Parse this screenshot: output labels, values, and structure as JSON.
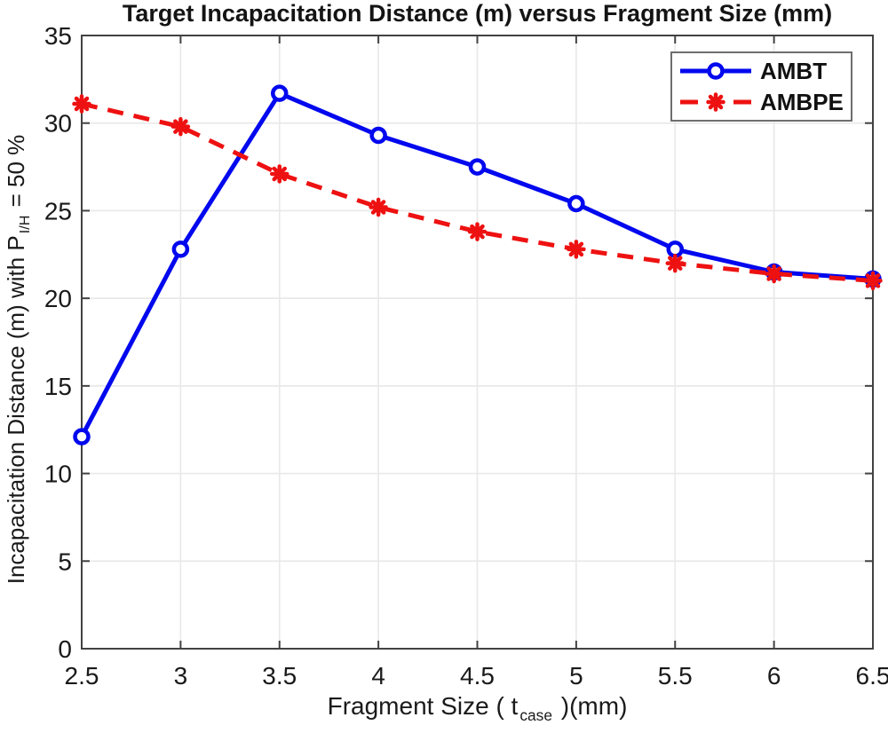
{
  "chart_data": {
    "type": "line",
    "title": "Target Incapacitation Distance (m) versus Fragment Size (mm)",
    "xlabel": {
      "pre": "Fragment Size ( t",
      "sub": "case",
      "post": " )(mm)"
    },
    "ylabel": {
      "pre": "Incapacitation Distance (m) with P",
      "sub": "I/H",
      "post": " = 50 %"
    },
    "xlim": [
      2.5,
      6.5
    ],
    "ylim": [
      0,
      35
    ],
    "xticks": [
      2.5,
      3,
      3.5,
      4,
      4.5,
      5,
      5.5,
      6,
      6.5
    ],
    "xtick_labels": [
      "2.5",
      "3",
      "3.5",
      "4",
      "4.5",
      "5",
      "5.5",
      "6",
      "6.5"
    ],
    "yticks": [
      0,
      5,
      10,
      15,
      20,
      25,
      30,
      35
    ],
    "ytick_labels": [
      "0",
      "5",
      "10",
      "15",
      "20",
      "25",
      "30",
      "35"
    ],
    "grid": true,
    "legend_position": "top-right",
    "x": [
      2.5,
      3,
      3.5,
      4,
      4.5,
      5,
      5.5,
      6,
      6.5
    ],
    "series": [
      {
        "name": "AMBT",
        "color": "#0008EE",
        "line_style": "solid",
        "marker": "circle",
        "values": [
          12.1,
          22.8,
          31.7,
          29.3,
          27.5,
          25.4,
          22.8,
          21.5,
          21.1
        ]
      },
      {
        "name": "AMBPE",
        "color": "#EE1111",
        "line_style": "dashed",
        "marker": "asterisk",
        "values": [
          31.1,
          29.8,
          27.1,
          25.2,
          23.8,
          22.8,
          22.0,
          21.4,
          21.0
        ]
      }
    ],
    "colors": {
      "grid": "#E9E9E9",
      "frame": "#424242",
      "text": "#1A1A1A",
      "background": "#FFFFFF"
    }
  }
}
